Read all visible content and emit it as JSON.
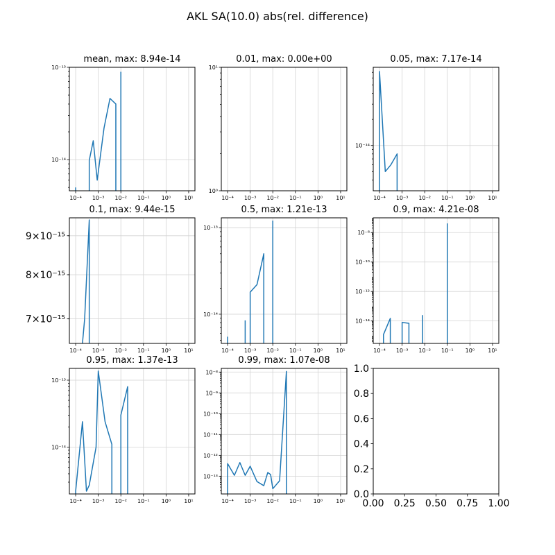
{
  "figure": {
    "title": "AKL SA(10.0) abs(rel. difference)"
  },
  "colors": {
    "series": "#1f77b4",
    "grid": "#d3d3d3"
  },
  "chart_data": [
    {
      "type": "line",
      "title": "mean, max: 8.94e-14",
      "xscale": "log",
      "yscale": "log",
      "xlim": [
        0.0001,
        10
      ],
      "ylim": [
        4.6e-15,
        1e-13
      ],
      "yticks": [
        1e-14,
        1e-13
      ],
      "grid": true,
      "series": [
        {
          "segments": [
            [
              [
                0.0001,
                5e-15
              ]
            ],
            [
              [
                0.0004,
                9.8e-15
              ],
              [
                0.0006,
                1.6e-14
              ],
              [
                0.0009,
                6e-15
              ],
              [
                0.0018,
                2.2e-14
              ],
              [
                0.0033,
                4.6e-14
              ],
              [
                0.006,
                4e-14
              ]
            ],
            [
              [
                0.01,
                8.94e-14
              ]
            ]
          ]
        }
      ]
    },
    {
      "type": "line",
      "title": "0.01, max: 0.00e+00",
      "xscale": "log",
      "yscale": "log",
      "xlim": [
        0.0001,
        10
      ],
      "ylim": [
        1,
        10
      ],
      "yticks": [
        1,
        10
      ],
      "grid": true,
      "series": []
    },
    {
      "type": "line",
      "title": "0.05, max: 7.17e-14",
      "xscale": "log",
      "yscale": "log",
      "xlim": [
        0.0001,
        10
      ],
      "ylim": [
        3e-15,
        8e-14
      ],
      "yticks": [
        1e-14
      ],
      "grid": true,
      "series": [
        {
          "segments": [
            [
              [
                0.0001,
                7.17e-14
              ],
              [
                0.00018,
                5e-15
              ],
              [
                0.00032,
                6e-15
              ],
              [
                0.0006,
                8e-15
              ]
            ]
          ]
        }
      ]
    },
    {
      "type": "line",
      "title": "0.1, max: 9.44e-15",
      "xscale": "log",
      "yscale": "log",
      "xlim": [
        0.0001,
        10
      ],
      "ylim": [
        6.5e-15,
        9.5e-15
      ],
      "yticks": [
        7e-15,
        8e-15,
        9e-15
      ],
      "grid": true,
      "series": [
        {
          "segments": [
            [
              [
                0.0002,
                6.5e-15
              ],
              [
                0.00025,
                7e-15
              ],
              [
                0.0004,
                9.44e-15
              ]
            ]
          ]
        }
      ]
    },
    {
      "type": "line",
      "title": "0.5, max: 1.21e-13",
      "xscale": "log",
      "yscale": "log",
      "xlim": [
        0.0001,
        10
      ],
      "ylim": [
        4.6e-15,
        1.3e-13
      ],
      "yticks": [
        1e-14,
        1e-13
      ],
      "grid": true,
      "series": [
        {
          "segments": [
            [
              [
                0.0001,
                5.5e-15
              ]
            ],
            [
              [
                0.0006,
                8.5e-15
              ]
            ],
            [
              [
                0.001,
                1.8e-14
              ],
              [
                0.002,
                2.2e-14
              ],
              [
                0.004,
                5e-14
              ]
            ],
            [
              [
                0.01,
                1.21e-13
              ]
            ]
          ]
        }
      ]
    },
    {
      "type": "line",
      "title": "0.9, max: 4.21e-08",
      "xscale": "log",
      "yscale": "log",
      "xlim": [
        0.0001,
        10
      ],
      "ylim": [
        3e-16,
        1e-07
      ],
      "yticks": [
        1e-14,
        1e-12,
        1e-10,
        1e-08
      ],
      "grid": true,
      "series": [
        {
          "segments": [
            [
              [
                0.00015,
                1.2e-15
              ],
              [
                0.0003,
                1.5e-14
              ]
            ],
            [
              [
                0.001,
                8e-15
              ],
              [
                0.002,
                7e-15
              ]
            ],
            [
              [
                0.008,
                2.5e-14
              ]
            ],
            [
              [
                0.1,
                4.21e-08
              ]
            ]
          ]
        }
      ]
    },
    {
      "type": "line",
      "title": "0.95, max: 1.37e-13",
      "xscale": "log",
      "yscale": "log",
      "xlim": [
        0.0001,
        10
      ],
      "ylim": [
        2e-15,
        1.5e-13
      ],
      "yticks": [
        1e-14,
        1e-13
      ],
      "grid": true,
      "series": [
        {
          "segments": [
            [
              [
                0.0001,
                2.2e-15
              ],
              [
                0.0002,
                2.4e-14
              ],
              [
                0.0003,
                2.2e-15
              ],
              [
                0.0004,
                2.7e-15
              ],
              [
                0.0008,
                1e-14
              ],
              [
                0.001,
                1.37e-13
              ],
              [
                0.002,
                2.4e-14
              ],
              [
                0.004,
                1.1e-14
              ]
            ],
            [
              [
                0.01,
                3e-14
              ],
              [
                0.02,
                8e-14
              ]
            ]
          ]
        }
      ]
    },
    {
      "type": "line",
      "title": "0.99, max: 1.07e-08",
      "xscale": "log",
      "yscale": "log",
      "xlim": [
        0.0001,
        10
      ],
      "ylim": [
        1.4e-14,
        1.5e-08
      ],
      "yticks": [
        1e-13,
        1e-12,
        1e-11,
        1e-10,
        1e-09,
        1e-08
      ],
      "grid": true,
      "series": [
        {
          "segments": [
            [
              [
                0.0001,
                4e-13
              ],
              [
                0.0002,
                1.1e-13
              ],
              [
                0.00035,
                4.5e-13
              ],
              [
                0.0006,
                1.1e-13
              ],
              [
                0.001,
                3e-13
              ],
              [
                0.002,
                5.5e-14
              ],
              [
                0.004,
                3.5e-14
              ],
              [
                0.006,
                1.5e-13
              ],
              [
                0.008,
                1.2e-13
              ],
              [
                0.01,
                2.5e-14
              ],
              [
                0.02,
                6e-14
              ],
              [
                0.04,
                1.07e-08
              ]
            ]
          ]
        }
      ]
    },
    {
      "type": "line",
      "title": "",
      "xscale": "linear",
      "yscale": "linear",
      "xlim": [
        0,
        1
      ],
      "ylim": [
        0,
        1
      ],
      "xticks": [
        "0.00",
        "0.25",
        "0.50",
        "0.75",
        "1.00"
      ],
      "yticks": [
        "0.0",
        "0.2",
        "0.4",
        "0.6",
        "0.8",
        "1.0"
      ],
      "grid": false,
      "series": []
    }
  ]
}
